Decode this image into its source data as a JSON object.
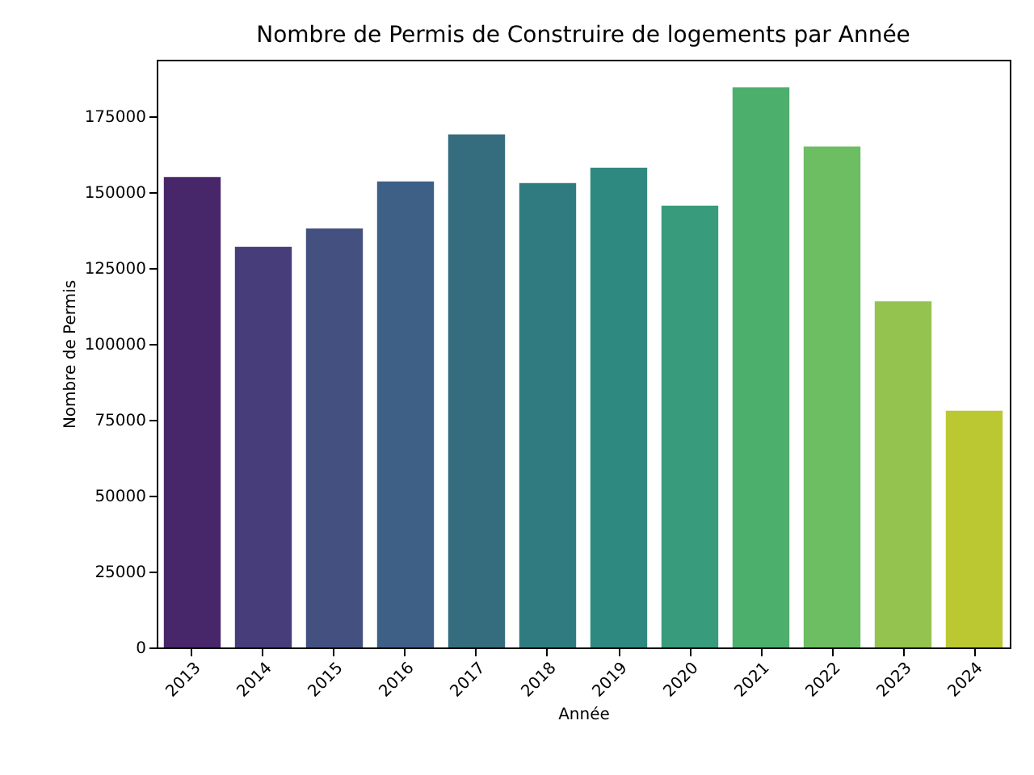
{
  "chart_data": {
    "type": "bar",
    "title": "Nombre de Permis de Construire de logements par Année",
    "xlabel": "Année",
    "ylabel": "Nombre de Permis",
    "categories": [
      "2013",
      "2014",
      "2015",
      "2016",
      "2017",
      "2018",
      "2019",
      "2020",
      "2021",
      "2022",
      "2023",
      "2024"
    ],
    "values": [
      155000,
      132000,
      138000,
      153500,
      169000,
      153000,
      158000,
      145500,
      184500,
      165000,
      114000,
      78000
    ],
    "colors": [
      "#48266a",
      "#473d7b",
      "#44507f",
      "#3e5f86",
      "#356d7f",
      "#307b80",
      "#2e8a80",
      "#389b7c",
      "#4caf6c",
      "#6dbd63",
      "#94c350",
      "#bcc832"
    ],
    "ylim": [
      0,
      193600
    ],
    "yticks": [
      0,
      25000,
      50000,
      75000,
      100000,
      125000,
      150000,
      175000
    ],
    "grid": false,
    "legend": false
  }
}
